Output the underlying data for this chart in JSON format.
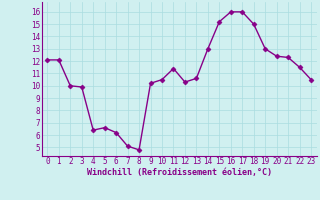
{
  "x": [
    0,
    1,
    2,
    3,
    4,
    5,
    6,
    7,
    8,
    9,
    10,
    11,
    12,
    13,
    14,
    15,
    16,
    17,
    18,
    19,
    20,
    21,
    22,
    23
  ],
  "y": [
    12.1,
    12.1,
    10.0,
    9.9,
    6.4,
    6.6,
    6.2,
    5.1,
    4.8,
    10.2,
    10.5,
    11.4,
    10.3,
    10.6,
    13.0,
    15.2,
    16.0,
    16.0,
    15.0,
    13.0,
    12.4,
    12.3,
    11.5,
    10.5
  ],
  "line_color": "#880088",
  "marker": "D",
  "marker_size": 2.5,
  "line_width": 1.0,
  "bg_color": "#d0f0f0",
  "grid_color": "#aadde0",
  "xlabel": "Windchill (Refroidissement éolien,°C)",
  "xlabel_color": "#880088",
  "tick_color": "#880088",
  "spine_color": "#880088",
  "xlim": [
    -0.5,
    23.5
  ],
  "ylim": [
    4.3,
    16.8
  ],
  "yticks": [
    5,
    6,
    7,
    8,
    9,
    10,
    11,
    12,
    13,
    14,
    15,
    16
  ],
  "xticks": [
    0,
    1,
    2,
    3,
    4,
    5,
    6,
    7,
    8,
    9,
    10,
    11,
    12,
    13,
    14,
    15,
    16,
    17,
    18,
    19,
    20,
    21,
    22,
    23
  ],
  "tick_fontsize": 5.5,
  "xlabel_fontsize": 6.0
}
